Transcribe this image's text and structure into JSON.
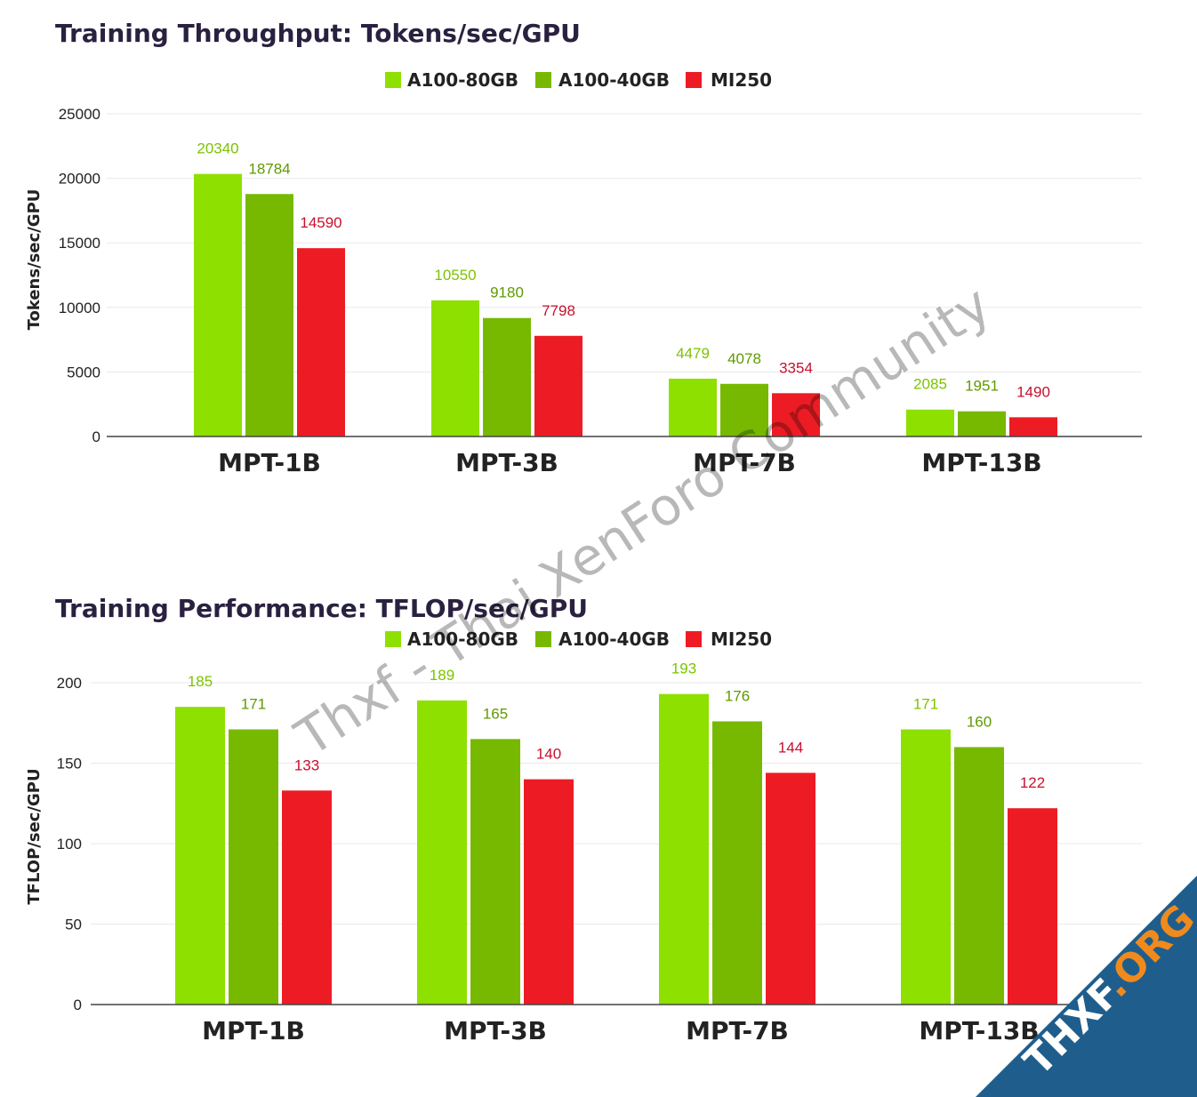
{
  "colors": {
    "A100-80GB": "#8ee000",
    "A100-40GB": "#76b900",
    "MI250": "#ed1c24",
    "label_A100-80GB": "#7cc300",
    "label_A100-40GB": "#5f9a00",
    "label_MI250": "#c8102e",
    "ribbon": "#1f5e8c",
    "ribbon_accent": "#f08a1c"
  },
  "watermark": {
    "text": "Thxf - Thai XenForo Community",
    "badge_thxf": "THXF",
    "badge_org": ".ORG"
  },
  "chart_data": [
    {
      "type": "bar",
      "title": "Training Throughput: Tokens/sec/GPU",
      "xlabel": "",
      "ylabel": "Tokens/sec/GPU",
      "ylim": [
        0,
        25000
      ],
      "yticks": [
        0,
        5000,
        10000,
        15000,
        20000,
        25000
      ],
      "grid": true,
      "legend": "top-center",
      "categories": [
        "MPT-1B",
        "MPT-3B",
        "MPT-7B",
        "MPT-13B"
      ],
      "series": [
        {
          "name": "A100-80GB",
          "values": [
            20340,
            10550,
            4479,
            2085
          ]
        },
        {
          "name": "A100-40GB",
          "values": [
            18784,
            9180,
            4078,
            1951
          ]
        },
        {
          "name": "MI250",
          "values": [
            14590,
            7798,
            3354,
            1490
          ]
        }
      ]
    },
    {
      "type": "bar",
      "title": "Training Performance: TFLOP/sec/GPU",
      "xlabel": "",
      "ylabel": "TFLOP/sec/GPU",
      "ylim": [
        0,
        200
      ],
      "yticks": [
        0,
        50,
        100,
        150,
        200
      ],
      "grid": true,
      "legend": "top-center",
      "categories": [
        "MPT-1B",
        "MPT-3B",
        "MPT-7B",
        "MPT-13B"
      ],
      "series": [
        {
          "name": "A100-80GB",
          "values": [
            185,
            189,
            193,
            171
          ]
        },
        {
          "name": "A100-40GB",
          "values": [
            171,
            165,
            176,
            160
          ]
        },
        {
          "name": "MI250",
          "values": [
            133,
            140,
            144,
            122
          ]
        }
      ]
    }
  ]
}
